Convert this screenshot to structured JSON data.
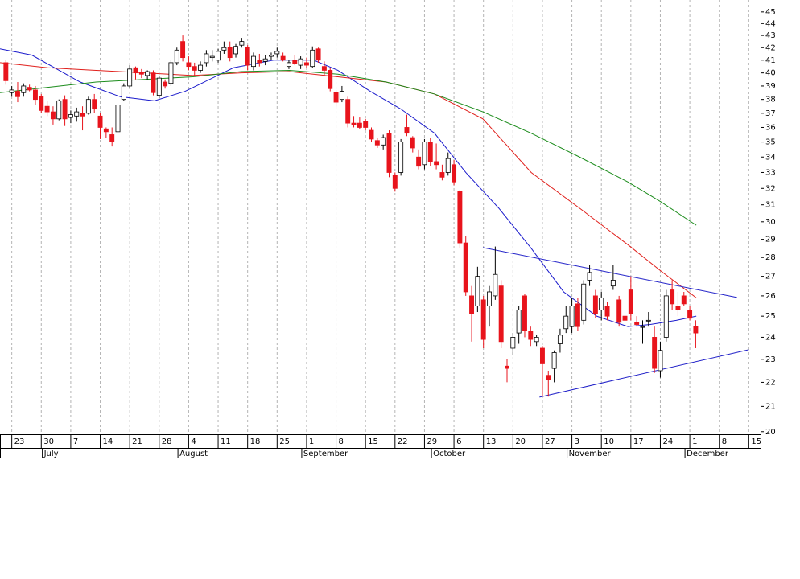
{
  "chart_data": {
    "type": "candlestick",
    "log_y": true,
    "ylim": [
      19.9,
      46.05
    ],
    "yticks": [
      20,
      21,
      22,
      23,
      24,
      25,
      26,
      27,
      28,
      29,
      30,
      31,
      32,
      33,
      34,
      35,
      36,
      37,
      38,
      39,
      40,
      41,
      42,
      43,
      44,
      45
    ],
    "xlim": [
      -2,
      127
    ],
    "xticks": [
      {
        "value": 0,
        "label": "23"
      },
      {
        "value": 5,
        "label": "30"
      },
      {
        "value": 10,
        "label": "7"
      },
      {
        "value": 15,
        "label": "14"
      },
      {
        "value": 20,
        "label": "21"
      },
      {
        "value": 25,
        "label": "28"
      },
      {
        "value": 30,
        "label": "4"
      },
      {
        "value": 35,
        "label": "11"
      },
      {
        "value": 40,
        "label": "18"
      },
      {
        "value": 45,
        "label": "25"
      },
      {
        "value": 50,
        "label": "1"
      },
      {
        "value": 55,
        "label": "8"
      },
      {
        "value": 60,
        "label": "15"
      },
      {
        "value": 65,
        "label": "22"
      },
      {
        "value": 70,
        "label": "29"
      },
      {
        "value": 75,
        "label": "6"
      },
      {
        "value": 80,
        "label": "13"
      },
      {
        "value": 85,
        "label": "20"
      },
      {
        "value": 90,
        "label": "27"
      },
      {
        "value": 95,
        "label": "3"
      },
      {
        "value": 100,
        "label": "10"
      },
      {
        "value": 105,
        "label": "17"
      },
      {
        "value": 110,
        "label": "24"
      },
      {
        "value": 115,
        "label": "1"
      },
      {
        "value": 120,
        "label": "8"
      },
      {
        "value": 125,
        "label": "15"
      }
    ],
    "month_ticks": [
      {
        "value": 6,
        "label": "July"
      },
      {
        "value": 29,
        "label": "August"
      },
      {
        "value": 50,
        "label": "September"
      },
      {
        "value": 72,
        "label": "October"
      },
      {
        "value": 95,
        "label": "November"
      },
      {
        "value": 115,
        "label": "December"
      }
    ],
    "grid": true,
    "up_color": "#ffffff",
    "down_color": "#e8141c",
    "candles": {
      "x": [
        -1,
        0,
        1,
        2,
        3,
        4,
        5,
        6,
        7,
        8,
        9,
        10,
        11,
        12,
        13,
        14,
        15,
        16,
        17,
        18,
        19,
        20,
        21,
        22,
        23,
        24,
        25,
        26,
        27,
        28,
        29,
        30,
        31,
        32,
        33,
        34,
        35,
        36,
        37,
        38,
        39,
        40,
        41,
        42,
        43,
        44,
        45,
        46,
        47,
        48,
        49,
        50,
        51,
        52,
        53,
        54,
        55,
        56,
        57,
        58,
        59,
        60,
        61,
        62,
        63,
        64,
        65,
        66,
        67,
        68,
        69,
        70,
        71,
        72,
        73,
        74,
        75,
        76,
        77,
        78,
        79,
        80,
        81,
        82,
        83,
        84,
        85,
        86,
        87,
        88,
        89,
        90,
        91,
        92,
        93,
        94,
        95,
        96,
        97,
        98,
        99,
        100,
        101,
        102,
        103,
        104,
        105,
        106,
        107,
        108,
        109,
        110,
        111,
        112,
        113,
        114,
        115,
        116
      ],
      "open": [
        40.8,
        38.5,
        38.6,
        38.5,
        38.9,
        38.7,
        38.2,
        37.5,
        37.1,
        36.6,
        38.0,
        36.7,
        36.8,
        37.0,
        37.0,
        38.0,
        36.8,
        35.9,
        35.5,
        35.7,
        38.0,
        39.0,
        40.4,
        40.0,
        39.8,
        40.0,
        38.3,
        39.3,
        39.2,
        40.8,
        42.5,
        40.8,
        40.5,
        40.2,
        40.8,
        41.2,
        41.0,
        41.8,
        42.0,
        41.5,
        42.2,
        42.0,
        40.5,
        41.0,
        40.9,
        41.3,
        41.5,
        41.3,
        40.5,
        41.0,
        40.6,
        40.8,
        40.5,
        41.9,
        40.5,
        40.2,
        38.5,
        38.0,
        38.0,
        36.3,
        36.3,
        36.4,
        35.8,
        35.1,
        34.8,
        35.6,
        32.8,
        33.0,
        36.0,
        35.3,
        34.0,
        33.5,
        35.0,
        33.7,
        33.0,
        33.0,
        33.5,
        31.8,
        28.8,
        26.0,
        25.5,
        25.8,
        25.5,
        26.0,
        26.5,
        22.7,
        23.5,
        24.2,
        26.0,
        24.3,
        23.8,
        23.5,
        22.3,
        22.6,
        23.7,
        24.4,
        24.5,
        25.6,
        24.8,
        26.8,
        26.0,
        25.3,
        25.5,
        26.5,
        25.8,
        25.0,
        26.3,
        24.7,
        24.5,
        24.8,
        24.0,
        22.5,
        24.0,
        26.3,
        25.5,
        26.0,
        25.3,
        24.5
      ],
      "high": [
        41.0,
        39.0,
        39.3,
        39.2,
        39.1,
        39.0,
        38.4,
        37.9,
        37.5,
        38.0,
        38.3,
        37.2,
        37.4,
        37.5,
        38.2,
        38.4,
        37.0,
        36.0,
        36.0,
        37.8,
        39.2,
        40.6,
        40.5,
        40.3,
        40.2,
        40.2,
        39.8,
        39.5,
        41.0,
        42.0,
        43.0,
        41.3,
        40.8,
        40.9,
        41.8,
        41.8,
        41.9,
        42.5,
        42.5,
        42.3,
        42.8,
        42.2,
        41.6,
        41.5,
        41.4,
        41.6,
        42.0,
        41.6,
        41.0,
        41.4,
        41.3,
        41.2,
        42.1,
        42.0,
        40.9,
        40.4,
        38.7,
        39.0,
        38.2,
        36.8,
        36.7,
        36.6,
        36.0,
        35.3,
        35.5,
        35.8,
        33.0,
        35.2,
        36.9,
        35.4,
        34.5,
        35.2,
        35.3,
        34.9,
        33.5,
        34.3,
        33.8,
        31.9,
        29.2,
        26.5,
        27.5,
        26.0,
        26.5,
        28.6,
        26.8,
        23.0,
        24.2,
        25.5,
        26.1,
        24.5,
        24.1,
        23.6,
        22.5,
        23.4,
        24.4,
        25.5,
        25.9,
        25.9,
        26.8,
        27.6,
        26.3,
        26.2,
        25.7,
        27.6,
        26.0,
        25.5,
        27.0,
        25.0,
        24.8,
        25.2,
        24.5,
        23.8,
        26.3,
        26.8,
        26.2,
        26.2,
        25.5,
        24.8
      ],
      "low": [
        39.1,
        38.2,
        37.8,
        38.2,
        38.6,
        37.6,
        37.0,
        36.8,
        36.2,
        36.5,
        36.1,
        36.3,
        36.4,
        35.8,
        36.9,
        37.0,
        35.2,
        35.3,
        34.7,
        35.5,
        37.9,
        38.8,
        39.5,
        39.6,
        39.5,
        38.3,
        38.1,
        38.8,
        39.0,
        40.6,
        40.9,
        40.2,
        39.8,
        40.0,
        40.5,
        40.9,
        40.8,
        41.5,
        40.9,
        41.2,
        42.0,
        40.2,
        40.2,
        40.5,
        40.6,
        41.0,
        41.2,
        40.9,
        40.3,
        40.6,
        40.3,
        40.4,
        40.4,
        40.8,
        39.8,
        38.6,
        37.5,
        37.8,
        36.0,
        36.0,
        35.9,
        35.8,
        35.0,
        34.6,
        34.5,
        32.7,
        31.8,
        32.8,
        35.4,
        34.3,
        33.2,
        33.2,
        33.4,
        33.2,
        32.5,
        32.8,
        32.2,
        28.5,
        26.0,
        23.8,
        25.2,
        23.5,
        24.5,
        25.8,
        23.5,
        22.0,
        23.2,
        23.7,
        24.0,
        23.6,
        23.6,
        21.4,
        21.4,
        22.0,
        23.3,
        24.2,
        24.2,
        24.3,
        24.6,
        26.5,
        24.9,
        24.8,
        24.8,
        26.3,
        24.5,
        24.3,
        24.8,
        24.5,
        23.7,
        24.5,
        22.4,
        22.2,
        23.8,
        25.3,
        25.0,
        25.5,
        24.8,
        23.5
      ],
      "close": [
        39.4,
        38.7,
        38.2,
        39.0,
        38.7,
        38.0,
        37.2,
        37.1,
        36.6,
        37.9,
        36.6,
        36.9,
        37.1,
        36.8,
        38.0,
        37.3,
        36.0,
        35.7,
        35.0,
        37.6,
        39.0,
        40.3,
        40.0,
        39.9,
        40.1,
        38.5,
        39.6,
        39.0,
        40.8,
        41.8,
        41.2,
        40.5,
        40.2,
        40.6,
        41.5,
        41.3,
        41.7,
        42.0,
        41.2,
        42.1,
        42.5,
        40.6,
        41.3,
        40.8,
        41.1,
        41.4,
        41.7,
        41.0,
        40.8,
        40.7,
        41.1,
        40.6,
        41.8,
        41.0,
        40.2,
        38.8,
        37.8,
        38.6,
        36.3,
        36.2,
        36.0,
        36.0,
        35.2,
        34.8,
        35.3,
        33.0,
        32.0,
        35.0,
        35.6,
        34.6,
        33.4,
        35.0,
        33.7,
        33.5,
        32.7,
        33.9,
        32.4,
        28.8,
        26.2,
        25.1,
        27.0,
        23.9,
        26.2,
        27.1,
        23.8,
        22.6,
        24.0,
        25.3,
        24.3,
        23.9,
        24.0,
        22.8,
        22.1,
        23.3,
        24.1,
        25.0,
        25.5,
        24.5,
        26.6,
        27.2,
        25.1,
        25.9,
        25.0,
        26.8,
        24.7,
        24.8,
        25.1,
        24.6,
        24.5,
        24.8,
        22.6,
        23.4,
        26.0,
        25.6,
        25.3,
        25.6,
        24.9,
        24.2
      ]
    },
    "series": [
      {
        "color": "#1c1ccc",
        "x": [
          -2,
          3.4,
          11.6,
          18.4,
          24.2,
          29.4,
          37.6,
          44.4,
          51.2,
          55.3,
          60.8,
          66,
          71.7,
          77,
          82.6,
          88.1,
          93.6,
          99.2,
          104.5,
          108.3,
          112.7,
          116.1
        ],
        "values": [
          41.9,
          41.4,
          39.3,
          38.2,
          37.9,
          38.6,
          40.4,
          41.0,
          41.0,
          40.2,
          38.6,
          37.3,
          35.6,
          33.0,
          30.8,
          28.5,
          26.2,
          25.0,
          24.5,
          24.6,
          24.8,
          25.0
        ]
      },
      {
        "color": "#e0201c",
        "x": [
          -2,
          6.1,
          14.3,
          22.5,
          30.7,
          38.9,
          47.1,
          55.3,
          63.5,
          71.7,
          79.9,
          88.1,
          96.3,
          104.5,
          110,
          116.1
        ],
        "values": [
          40.8,
          40.4,
          40.2,
          40.0,
          39.8,
          40.0,
          40.1,
          39.7,
          39.3,
          38.4,
          36.6,
          33.0,
          30.8,
          28.7,
          27.3,
          25.9
        ]
      },
      {
        "color": "#1c8c1c",
        "x": [
          -2,
          6.1,
          14.3,
          22.5,
          30.7,
          38.9,
          47.1,
          55.3,
          63.5,
          71.7,
          79.9,
          88.1,
          96.3,
          104.5,
          110,
          116.1
        ],
        "values": [
          38.5,
          38.9,
          39.3,
          39.5,
          39.7,
          40.1,
          40.2,
          39.9,
          39.3,
          38.4,
          37.1,
          35.6,
          34.0,
          32.4,
          31.2,
          29.8
        ]
      }
    ],
    "trendlines": [
      {
        "color": "#2020c8",
        "x": [
          79.9,
          123
        ],
        "values": [
          28.54,
          25.92
        ]
      },
      {
        "color": "#2020c8",
        "x": [
          89.5,
          125
        ],
        "values": [
          21.38,
          23.43
        ]
      }
    ]
  }
}
